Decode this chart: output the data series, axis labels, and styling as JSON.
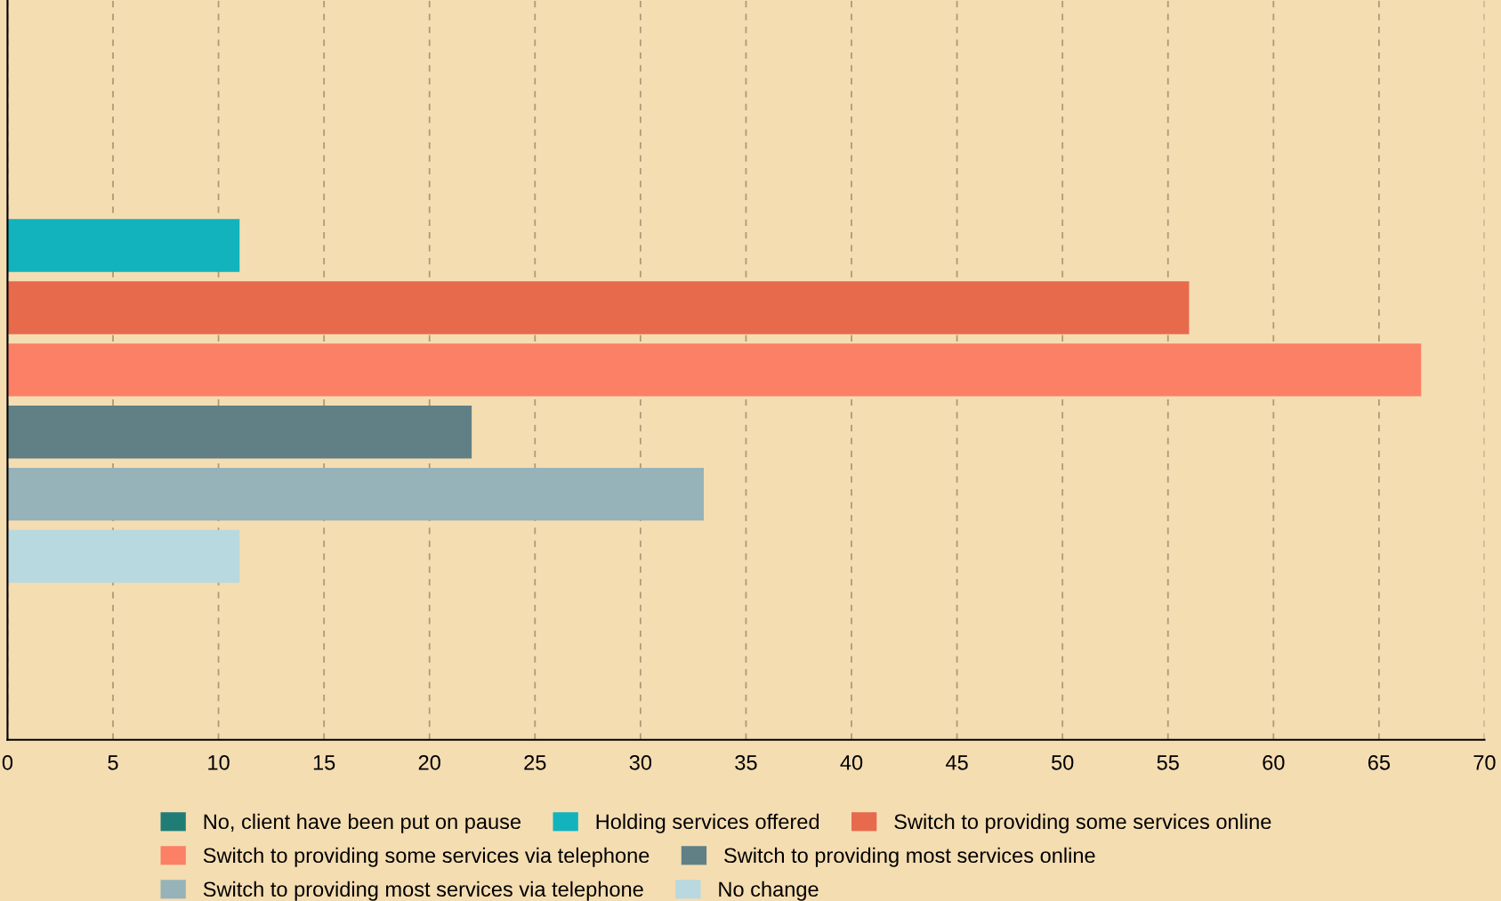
{
  "chart_data": {
    "type": "bar",
    "orientation": "horizontal",
    "categories": [
      null
    ],
    "series": [
      {
        "name": "No, client have been put on pause",
        "color": "#207d76",
        "values": [
          0
        ]
      },
      {
        "name": "Holding services offered",
        "color": "#12b3bd",
        "values": [
          11
        ]
      },
      {
        "name": "Switch to providing some services online",
        "color": "#e76a4d",
        "values": [
          56
        ]
      },
      {
        "name": "Switch to providing some services via telephone",
        "color": "#fb8066",
        "values": [
          67
        ]
      },
      {
        "name": "Switch to providing most services online",
        "color": "#618085",
        "values": [
          22
        ]
      },
      {
        "name": "Switch to providing most services via telephone",
        "color": "#95b3b8",
        "values": [
          33
        ]
      },
      {
        "name": "No change",
        "color": "#b8d9df",
        "values": [
          11
        ]
      }
    ],
    "xlim": [
      0,
      70
    ],
    "xticks": [
      0,
      5,
      10,
      15,
      20,
      25,
      30,
      35,
      40,
      45,
      50,
      55,
      60,
      65,
      70
    ],
    "grid": "x",
    "line_style": "dashed",
    "legend": "bottom",
    "tick_labels": "x"
  }
}
